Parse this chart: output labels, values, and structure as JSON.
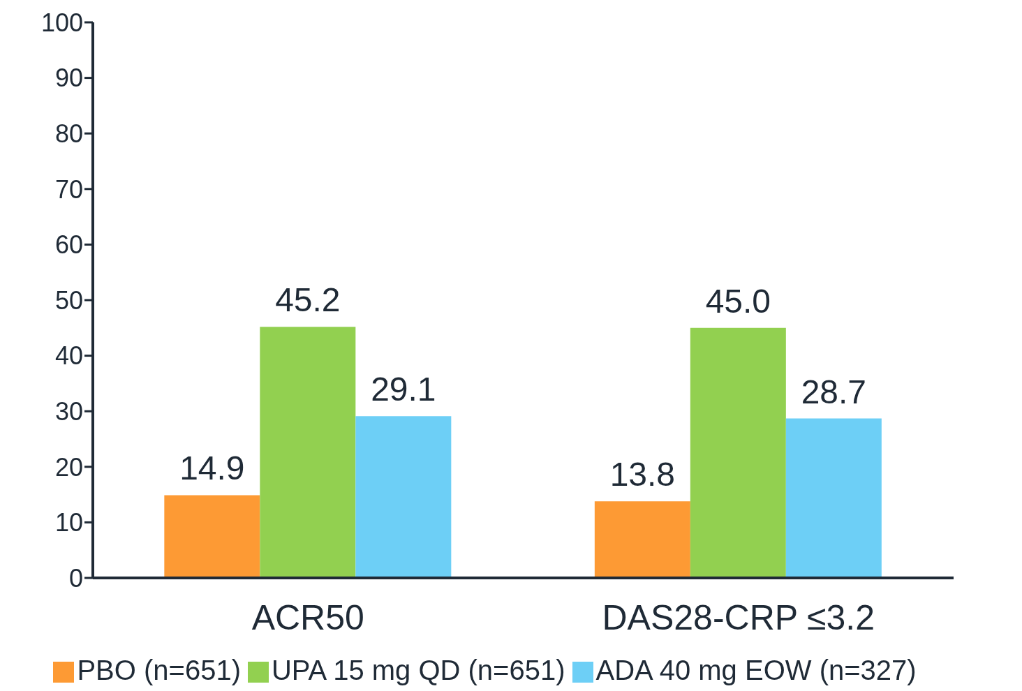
{
  "chart_data": {
    "type": "bar",
    "categories": [
      "ACR50",
      "DAS28-CRP ≤3.2"
    ],
    "series": [
      {
        "name": "PBO (n=651)",
        "color": "#fd9a34",
        "values": [
          14.9,
          13.8
        ]
      },
      {
        "name": "UPA 15 mg QD (n=651)",
        "color": "#92d050",
        "values": [
          45.2,
          45.0
        ]
      },
      {
        "name": "ADA 40 mg EOW (n=327)",
        "color": "#6dcff6",
        "values": [
          29.1,
          28.7
        ]
      }
    ],
    "value_labels": [
      [
        "14.9",
        "13.8"
      ],
      [
        "45.2",
        "45.0"
      ],
      [
        "29.1",
        "28.7"
      ]
    ],
    "ylim": [
      0,
      100
    ],
    "yticks": [
      0,
      10,
      20,
      30,
      40,
      50,
      60,
      70,
      80,
      90,
      100
    ],
    "grid": false,
    "legend": "bottom"
  }
}
